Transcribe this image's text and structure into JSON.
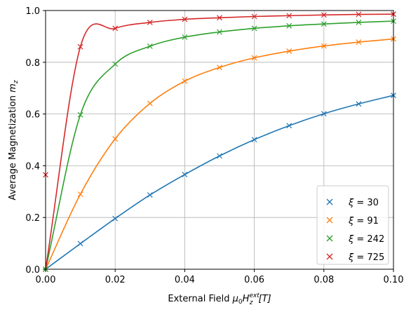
{
  "chart_data": {
    "type": "line",
    "xlabel_prefix": "External Field ",
    "xlabel_symbol": "μ",
    "xlabel_sub0": "0",
    "xlabel_H": "H",
    "xlabel_sup": "ext",
    "xlabel_subz": "z",
    "xlabel_unit": "[T]",
    "ylabel_prefix": "Average Magnetization ",
    "ylabel_symbol": "m",
    "ylabel_sub": "z",
    "xlim": [
      0,
      0.1
    ],
    "ylim": [
      0,
      1
    ],
    "xticks": [
      "0.00",
      "0.02",
      "0.04",
      "0.06",
      "0.08",
      "0.10"
    ],
    "yticks": [
      "0.0",
      "0.2",
      "0.4",
      "0.6",
      "0.8",
      "1.0"
    ],
    "grid": true,
    "legend_position": "bottom-right",
    "series": [
      {
        "name": "ξ = 30",
        "xi": "30",
        "color": "#1f77b4",
        "x": [
          0.0,
          0.01,
          0.02,
          0.03,
          0.04,
          0.05,
          0.06,
          0.07,
          0.08,
          0.09,
          0.1
        ],
        "y": [
          0.0,
          0.099,
          0.196,
          0.287,
          0.366,
          0.438,
          0.501,
          0.555,
          0.601,
          0.639,
          0.672
        ]
      },
      {
        "name": "ξ = 91",
        "xi": "91",
        "color": "#ff7f0e",
        "x": [
          0.0,
          0.01,
          0.02,
          0.03,
          0.04,
          0.05,
          0.06,
          0.07,
          0.08,
          0.09,
          0.1
        ],
        "y": [
          0.0,
          0.29,
          0.504,
          0.641,
          0.727,
          0.78,
          0.817,
          0.843,
          0.863,
          0.878,
          0.89
        ]
      },
      {
        "name": "ξ = 242",
        "xi": "242",
        "color": "#2ca02c",
        "x": [
          0.0,
          0.01,
          0.02,
          0.03,
          0.04,
          0.05,
          0.06,
          0.07,
          0.08,
          0.09,
          0.1
        ],
        "y": [
          0.0,
          0.597,
          0.793,
          0.862,
          0.897,
          0.917,
          0.931,
          0.941,
          0.948,
          0.954,
          0.959
        ]
      },
      {
        "name": "ξ = 725",
        "xi": "725",
        "color": "#d62728",
        "x": [
          0.0,
          0.01,
          0.02,
          0.03,
          0.04,
          0.05,
          0.06,
          0.07,
          0.08,
          0.09,
          0.1
        ],
        "y": [
          0.365,
          0.86,
          0.931,
          0.954,
          0.966,
          0.972,
          0.977,
          0.98,
          0.983,
          0.985,
          0.986
        ]
      }
    ]
  }
}
